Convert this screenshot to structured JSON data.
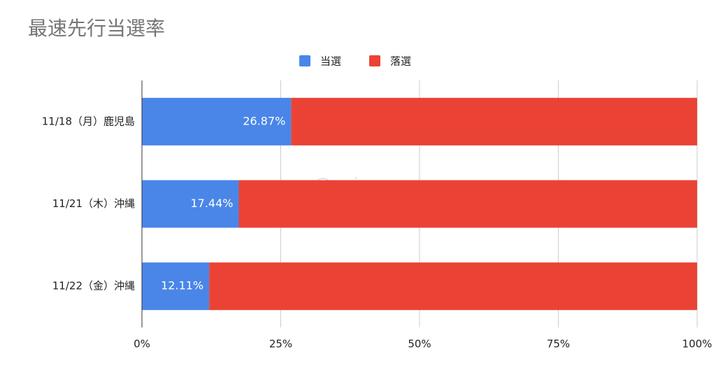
{
  "chart_data": {
    "type": "stacked_barh",
    "title": "最速先行当選率",
    "categories": [
      "11/18（月）鹿児島",
      "11/21（木）沖縄",
      "11/22（金）沖縄"
    ],
    "series": [
      {
        "name": "当選",
        "color": "#4a86e8",
        "values": [
          26.87,
          17.44,
          12.11
        ],
        "value_labels": [
          "26.87%",
          "17.44%",
          "12.11%"
        ]
      },
      {
        "name": "落選",
        "color": "#ea4335",
        "values": [
          73.13,
          82.56,
          87.89
        ]
      }
    ],
    "xlim": [
      0,
      100
    ],
    "xticks": [
      {
        "value": 0,
        "label": "0%"
      },
      {
        "value": 25,
        "label": "25%"
      },
      {
        "value": 50,
        "label": "50%"
      },
      {
        "value": 75,
        "label": "75%"
      },
      {
        "value": 100,
        "label": "100%"
      }
    ],
    "grid": true,
    "legend": "top",
    "watermark": "@rrrinxxx"
  }
}
